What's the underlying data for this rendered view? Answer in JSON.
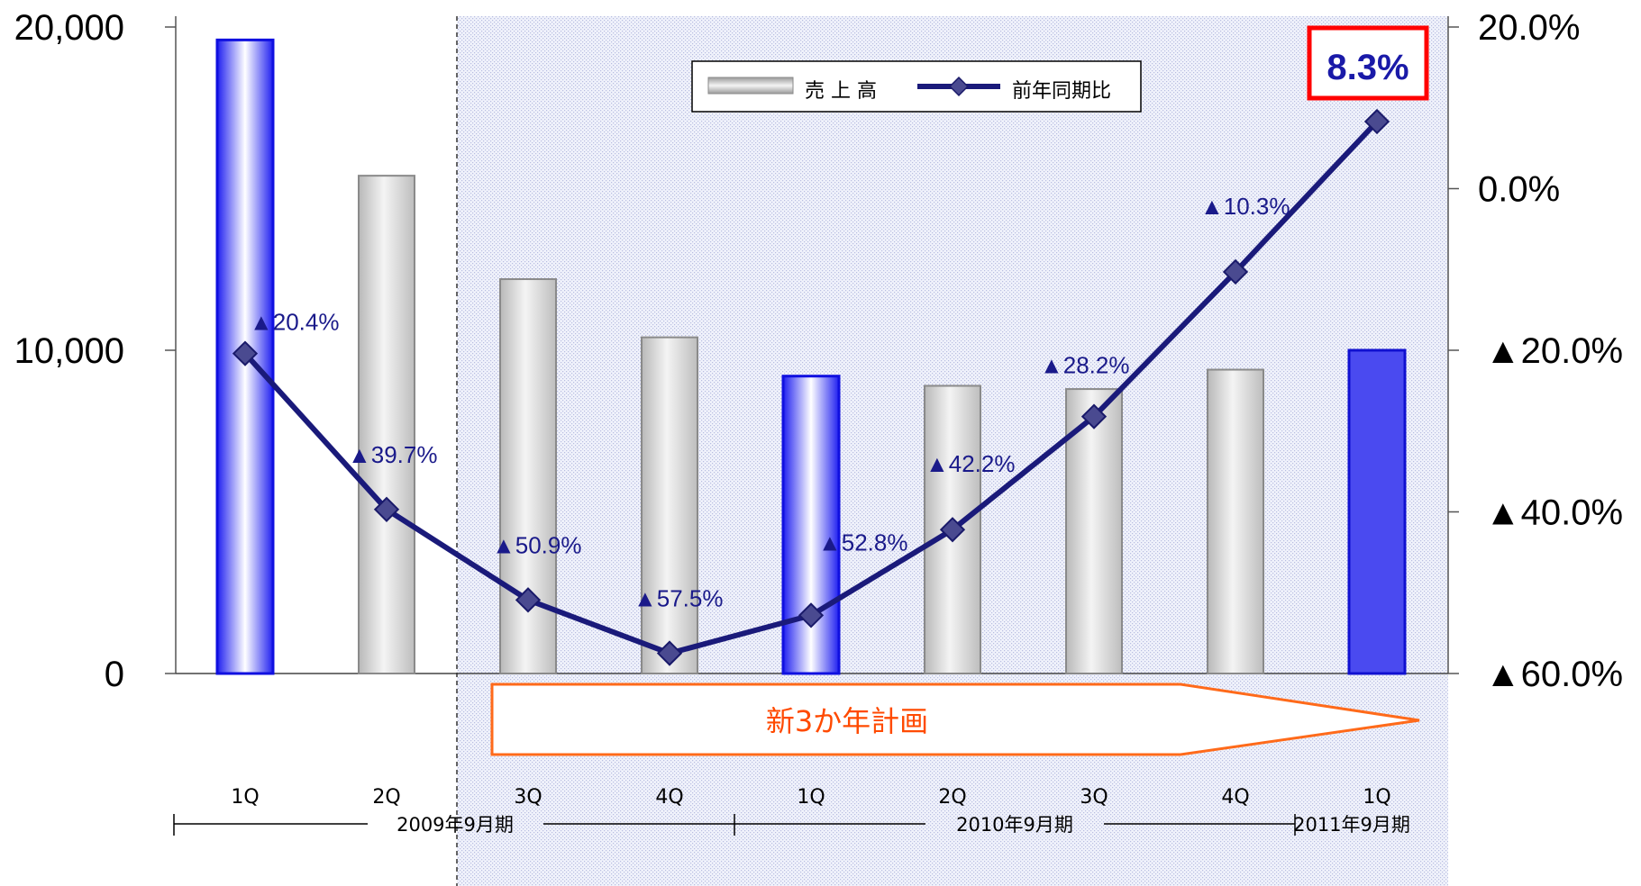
{
  "chart_data": {
    "type": "bar",
    "categories": [
      "1Q",
      "2Q",
      "3Q",
      "4Q",
      "1Q",
      "2Q",
      "3Q",
      "4Q",
      "1Q"
    ],
    "series": [
      {
        "name": "売 上 高",
        "type": "bar",
        "values": [
          19600,
          15400,
          12200,
          10400,
          9200,
          8900,
          8800,
          9400,
          10000
        ],
        "highlight": [
          true,
          false,
          false,
          false,
          true,
          false,
          false,
          false,
          true
        ]
      },
      {
        "name": "前年同期比",
        "type": "line",
        "axis": "right",
        "values": [
          -20.4,
          -39.7,
          -50.9,
          -57.5,
          -52.8,
          -42.2,
          -28.2,
          -10.3,
          8.3
        ],
        "labels": [
          "▲20.4%",
          "▲39.7%",
          "▲50.9%",
          "▲57.5%",
          "▲52.8%",
          "▲42.2%",
          "▲28.2%",
          "▲10.3%",
          "8.3%"
        ]
      }
    ],
    "y_left": {
      "ticks": [
        "0",
        "10,000",
        "20,000"
      ],
      "tick_values": [
        0,
        10000,
        20000
      ],
      "ylim": [
        0,
        20000
      ]
    },
    "y_right": {
      "ticks": [
        "20.0%",
        "0.0%",
        "▲20.0%",
        "▲40.0%",
        "▲60.0%"
      ],
      "tick_values": [
        20,
        0,
        -20,
        -40,
        -60
      ],
      "ylim": [
        -60,
        20
      ]
    },
    "periods": [
      "2009年9月期",
      "2010年9月期",
      "2011年9月期"
    ],
    "annotation": "新3か年計画",
    "highlight_value": "8.3%",
    "legend_position": "top-center",
    "colors": {
      "bar_gray": "#c8c8c8",
      "bar_blue": "#2a2af0",
      "line": "#1a1a7a",
      "highlight_box": "#ff0000",
      "arrow_outline": "#ff6a1a"
    }
  }
}
